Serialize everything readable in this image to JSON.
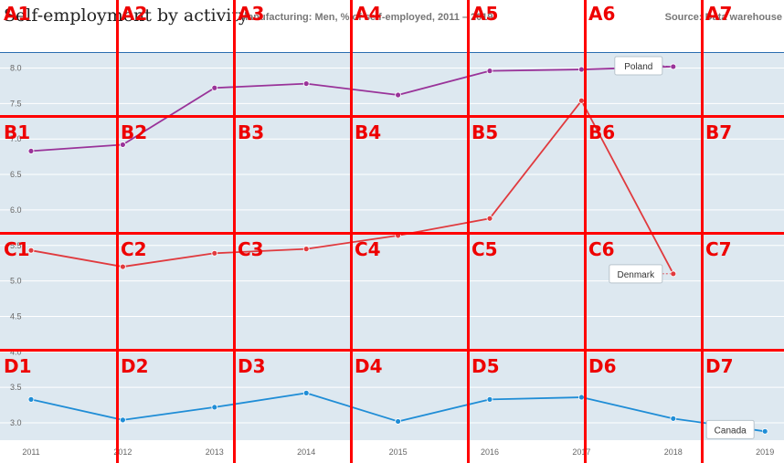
{
  "header": {
    "title": "Self-employment by activity",
    "subtitle": "Manufacturing: Men, % of self-employed, 2011 – 2019",
    "source": "Source: Data warehouse"
  },
  "chart_data": {
    "type": "line",
    "title": "Self-employment by activity",
    "subtitle": "Manufacturing: Men, % of self-employed, 2011 – 2019",
    "x": [
      2011,
      2012,
      2013,
      2014,
      2015,
      2016,
      2017,
      2018,
      2019
    ],
    "yticks": [
      "3.0",
      "3.5",
      "4.0",
      "4.5",
      "5.0",
      "5.5",
      "6.0",
      "6.5",
      "7.0",
      "7.5",
      "8.0"
    ],
    "ylim": [
      2.75,
      8.2
    ],
    "grid": true,
    "series": [
      {
        "name": "Poland",
        "color": "#993399",
        "x": [
          2011,
          2012,
          2013,
          2014,
          2015,
          2016,
          2017,
          2018
        ],
        "values": [
          6.83,
          6.92,
          7.72,
          7.78,
          7.62,
          7.96,
          7.98,
          8.02
        ]
      },
      {
        "name": "Denmark",
        "color": "#e03a3e",
        "x": [
          2011,
          2012,
          2013,
          2014,
          2015,
          2016,
          2017,
          2018
        ],
        "values": [
          5.43,
          5.2,
          5.39,
          5.45,
          5.64,
          5.88,
          7.54,
          5.1
        ]
      },
      {
        "name": "Canada",
        "color": "#1f8dd6",
        "x": [
          2011,
          2012,
          2013,
          2014,
          2015,
          2016,
          2017,
          2018,
          2019
        ],
        "values": [
          3.33,
          3.04,
          3.22,
          3.42,
          3.02,
          3.33,
          3.36,
          3.06,
          2.88
        ]
      }
    ]
  },
  "grid_labels": {
    "cols": [
      "A",
      "B",
      "C",
      "D"
    ],
    "rows": [
      "1",
      "2",
      "3",
      "4",
      "5",
      "6",
      "7"
    ]
  }
}
